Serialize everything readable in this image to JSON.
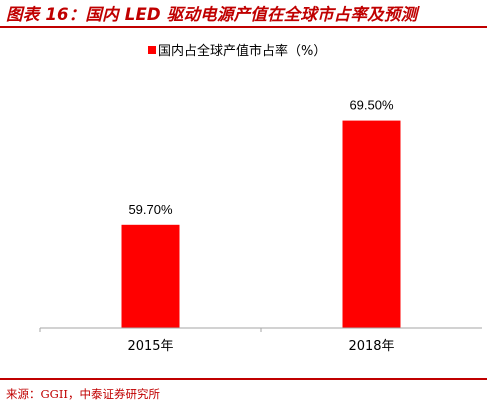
{
  "header": {
    "figure_title": "图表 16：国内 LED 驱动电源产值在全球市占率及预测"
  },
  "footer": {
    "source": "来源：GGII，中泰证券研究所"
  },
  "colors": {
    "accent": "#c00000",
    "bar": "#ff0000",
    "axis": "#a6a6a6"
  },
  "chart_data": {
    "type": "bar",
    "title": "",
    "xlabel": "",
    "ylabel": "",
    "categories": [
      "2015年",
      "2018年"
    ],
    "series": [
      {
        "name": "国内占全球产值市占率（%）",
        "values": [
          59.7,
          69.5
        ],
        "labels": [
          "59.70%",
          "69.50%"
        ]
      }
    ],
    "ylim": [
      50,
      72
    ],
    "grid": false,
    "legend_position": "top-center",
    "y_axis_visible": false
  }
}
